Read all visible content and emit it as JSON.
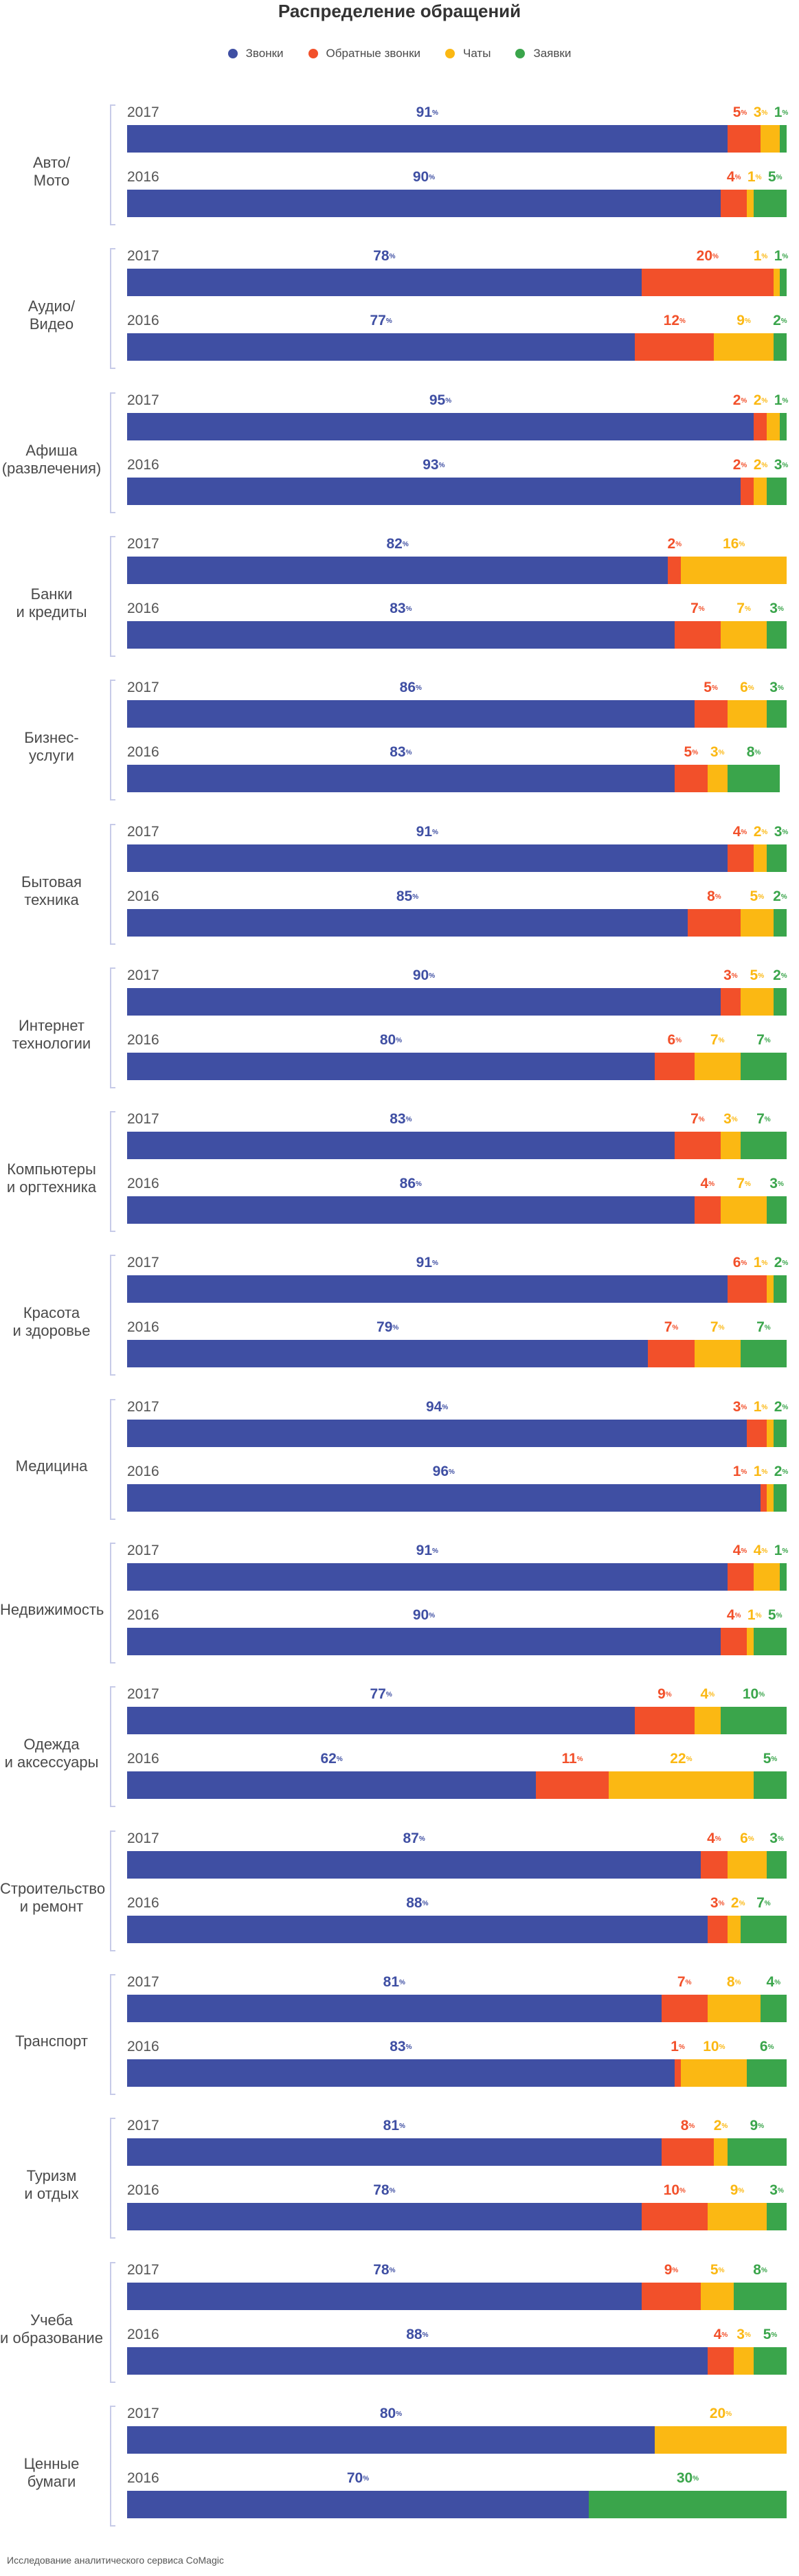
{
  "title": "Распределение обращений",
  "footer": "Исследование аналитического сервиса CoMagic",
  "chart_data": {
    "type": "bar",
    "orientation": "horizontal",
    "stacked": true,
    "normalized": true,
    "value_unit": "%",
    "legend": {
      "placement": "top",
      "entries": [
        "Звонки",
        "Обратные звонки",
        "Чаты",
        "Заявки"
      ]
    },
    "series_colors": [
      "#3f4fa3",
      "#f2502a",
      "#fbb813",
      "#3aa54b"
    ],
    "years": [
      "2017",
      "2016"
    ],
    "categories": [
      {
        "name": "Авто/\nМото",
        "data": {
          "2017": [
            91,
            5,
            3,
            1
          ],
          "2016": [
            90,
            4,
            1,
            5
          ]
        }
      },
      {
        "name": "Аудио/\nВидео",
        "data": {
          "2017": [
            78,
            20,
            1,
            1
          ],
          "2016": [
            77,
            12,
            9,
            2
          ]
        }
      },
      {
        "name": "Афиша\n(развлечения)",
        "data": {
          "2017": [
            95,
            2,
            2,
            1
          ],
          "2016": [
            93,
            2,
            2,
            3
          ]
        }
      },
      {
        "name": "Банки\nи кредиты",
        "data": {
          "2017": [
            82,
            2,
            16,
            0
          ],
          "2016": [
            83,
            7,
            7,
            3
          ]
        }
      },
      {
        "name": "Бизнес-\nуслуги",
        "data": {
          "2017": [
            86,
            5,
            6,
            3
          ],
          "2016": [
            83,
            5,
            3,
            8
          ]
        }
      },
      {
        "name": "Бытовая\nтехника",
        "data": {
          "2017": [
            91,
            4,
            2,
            3
          ],
          "2016": [
            85,
            8,
            5,
            2
          ]
        }
      },
      {
        "name": "Интернет\nтехнологии",
        "data": {
          "2017": [
            90,
            3,
            5,
            2
          ],
          "2016": [
            80,
            6,
            7,
            7
          ]
        }
      },
      {
        "name": "Компьютеры\nи оргтехника",
        "data": {
          "2017": [
            83,
            7,
            3,
            7
          ],
          "2016": [
            86,
            4,
            7,
            3
          ]
        }
      },
      {
        "name": "Красота\nи здоровье",
        "data": {
          "2017": [
            91,
            6,
            1,
            2
          ],
          "2016": [
            79,
            7,
            7,
            7
          ]
        }
      },
      {
        "name": "Медицина",
        "data": {
          "2017": [
            94,
            3,
            1,
            2
          ],
          "2016": [
            96,
            1,
            1,
            2
          ]
        }
      },
      {
        "name": "Недвижимость",
        "data": {
          "2017": [
            91,
            4,
            4,
            1
          ],
          "2016": [
            90,
            4,
            1,
            5
          ]
        }
      },
      {
        "name": "Одежда\nи аксессуары",
        "data": {
          "2017": [
            77,
            9,
            4,
            10
          ],
          "2016": [
            62,
            11,
            22,
            5
          ]
        }
      },
      {
        "name": "Строительство\nи ремонт",
        "data": {
          "2017": [
            87,
            4,
            6,
            3
          ],
          "2016": [
            88,
            3,
            2,
            7
          ]
        }
      },
      {
        "name": "Транспорт",
        "data": {
          "2017": [
            81,
            7,
            8,
            4
          ],
          "2016": [
            83,
            1,
            10,
            6
          ]
        }
      },
      {
        "name": "Туризм\nи отдых",
        "data": {
          "2017": [
            81,
            8,
            2,
            9
          ],
          "2016": [
            78,
            10,
            9,
            3
          ]
        }
      },
      {
        "name": "Учеба\nи образование",
        "data": {
          "2017": [
            78,
            9,
            5,
            8
          ],
          "2016": [
            88,
            4,
            3,
            5
          ]
        }
      },
      {
        "name": "Ценные\nбумаги",
        "data": {
          "2017": [
            80,
            0,
            20,
            0
          ],
          "2016": [
            70,
            0,
            0,
            30
          ]
        }
      }
    ]
  }
}
